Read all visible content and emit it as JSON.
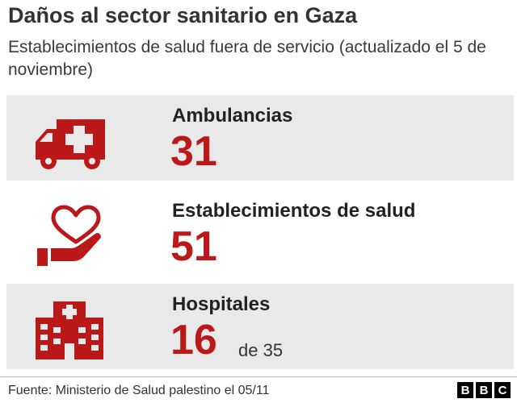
{
  "header": {
    "title": "Daños al sector sanitario en Gaza",
    "subtitle": "Establecimientos de salud fuera de servicio (actualizado el 5 de noviembre)"
  },
  "stats": [
    {
      "label": "Ambulancias",
      "value": "31",
      "icon": "ambulance-icon"
    },
    {
      "label": "Establecimientos de salud",
      "value": "51",
      "icon": "hand-heart-icon"
    },
    {
      "label": "Hospitales",
      "value": "16",
      "of_text": "de 35",
      "icon": "hospital-building-icon"
    }
  ],
  "footer": {
    "source": "Fuente: Ministerio de Salud palestino el 05/11",
    "logo": "BBC",
    "logo_letters": [
      "B",
      "B",
      "C"
    ]
  },
  "colors": {
    "accent": "#bb1919",
    "card_background": "#e9e9e9",
    "text": "#222222"
  }
}
